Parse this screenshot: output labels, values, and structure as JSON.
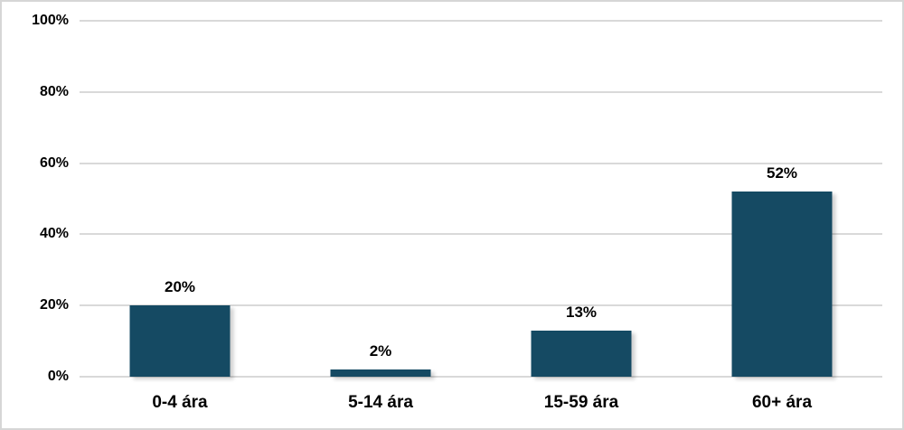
{
  "chart_data": {
    "type": "bar",
    "title": "",
    "xlabel": "",
    "ylabel": "",
    "categories": [
      "0-4 ára",
      "5-14 ára",
      "15-59 ára",
      "60+ ára"
    ],
    "values": [
      20,
      2,
      13,
      52
    ],
    "data_labels": [
      "20%",
      "2%",
      "13%",
      "52%"
    ],
    "y_ticks": [
      {
        "value": 100,
        "label": "100%"
      },
      {
        "value": 80,
        "label": "80%"
      },
      {
        "value": 60,
        "label": "60%"
      },
      {
        "value": 40,
        "label": "40%"
      },
      {
        "value": 20,
        "label": "20%"
      },
      {
        "value": 0,
        "label": "0%"
      }
    ],
    "ylim": [
      0,
      100
    ],
    "grid": "horizontal",
    "legend": "none",
    "colors": {
      "bar": "#154a63",
      "gridline": "#d9d9d9",
      "text": "#000000",
      "background": "#ffffff",
      "frame_border": "#d6d6d6"
    }
  }
}
